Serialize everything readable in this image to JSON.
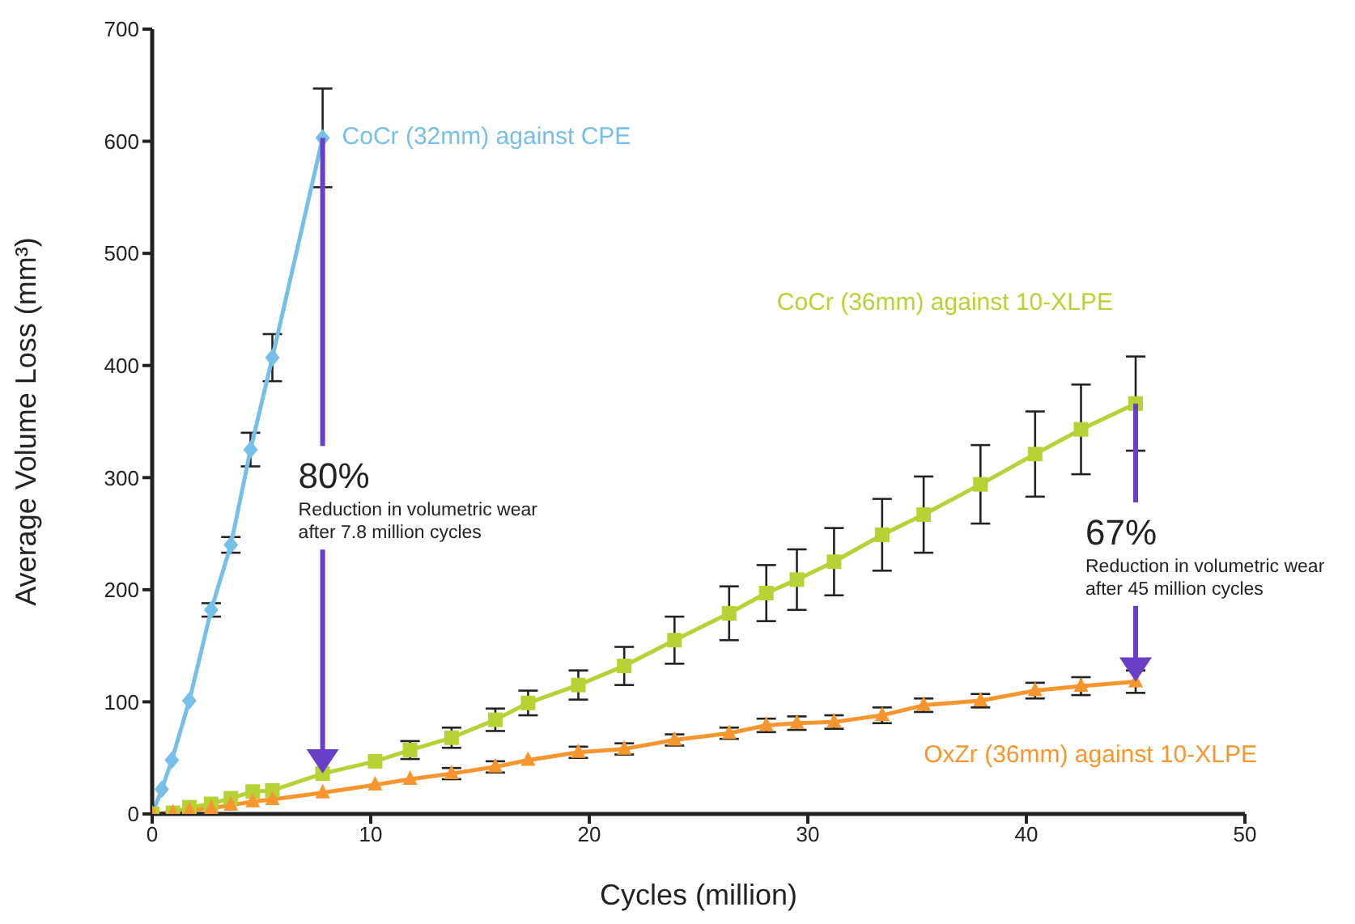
{
  "chart_data": {
    "type": "line",
    "xlabel": "Cycles (million)",
    "ylabel": "Average Volume Loss (mm³)",
    "xlim": [
      0,
      50
    ],
    "xticks": [
      0,
      10,
      20,
      30,
      40,
      50
    ],
    "ylim": [
      0,
      700
    ],
    "yticks": [
      0,
      100,
      200,
      300,
      400,
      500,
      600,
      700
    ],
    "grid": false,
    "legend": false,
    "series": [
      {
        "name": "CoCr (32mm) against CPE",
        "color": "#75bfe8",
        "marker": "diamond",
        "x": [
          0,
          0.44,
          0.9,
          1.7,
          2.7,
          3.6,
          4.5,
          5.5,
          7.8
        ],
        "values": [
          0,
          22,
          48,
          101,
          182,
          240,
          325,
          407,
          603
        ],
        "errors": [
          null,
          null,
          null,
          null,
          6,
          7,
          15,
          21,
          44
        ]
      },
      {
        "name": "CoCr (36mm) against 10-XLPE",
        "color": "#b5d334",
        "marker": "square",
        "x": [
          0,
          0.95,
          1.7,
          2.7,
          3.6,
          4.6,
          5.5,
          7.8,
          10.2,
          11.8,
          13.7,
          15.7,
          17.2,
          19.5,
          21.6,
          23.9,
          26.4,
          28.1,
          29.5,
          31.2,
          33.4,
          35.3,
          37.9,
          40.4,
          42.5,
          45
        ],
        "values": [
          0,
          1,
          6,
          9,
          14,
          20,
          21,
          36,
          47,
          57,
          68,
          84,
          99,
          115,
          132,
          155,
          179,
          197,
          209,
          225,
          249,
          267,
          294,
          321,
          343,
          366
        ],
        "errors": [
          null,
          null,
          null,
          null,
          null,
          null,
          null,
          null,
          null,
          8,
          9,
          10,
          11,
          13,
          17,
          21,
          24,
          25,
          27,
          30,
          32,
          34,
          35,
          38,
          40,
          42
        ]
      },
      {
        "name": "OxZr (36mm) against 10-XLPE",
        "color": "#f7962e",
        "marker": "triangle",
        "x": [
          0,
          0.95,
          1.7,
          2.7,
          3.6,
          4.6,
          5.5,
          7.8,
          10.2,
          11.8,
          13.7,
          15.7,
          17.2,
          19.5,
          21.6,
          23.9,
          26.4,
          28.1,
          29.5,
          31.2,
          33.4,
          35.3,
          37.9,
          40.4,
          42.5,
          45
        ],
        "values": [
          0,
          1,
          3,
          5,
          8,
          11,
          13,
          19,
          26,
          31,
          36,
          42,
          48,
          55,
          58,
          66,
          72,
          79,
          81,
          82,
          88,
          97,
          101,
          110,
          114,
          118
        ],
        "errors": [
          null,
          null,
          null,
          null,
          null,
          null,
          null,
          null,
          null,
          null,
          5,
          5,
          null,
          5,
          5,
          5,
          5,
          6,
          6,
          6,
          7,
          6,
          6,
          7,
          8,
          10
        ]
      }
    ],
    "annotations": [
      {
        "text": "80%\nReduction in volumetric wear\nafter 7.8 million cycles",
        "x": 7.8,
        "y": 36
      },
      {
        "text": "67%\nReduction in volumetric wear\nafter 45 million cycles",
        "x": 45,
        "y": 118
      }
    ]
  }
}
